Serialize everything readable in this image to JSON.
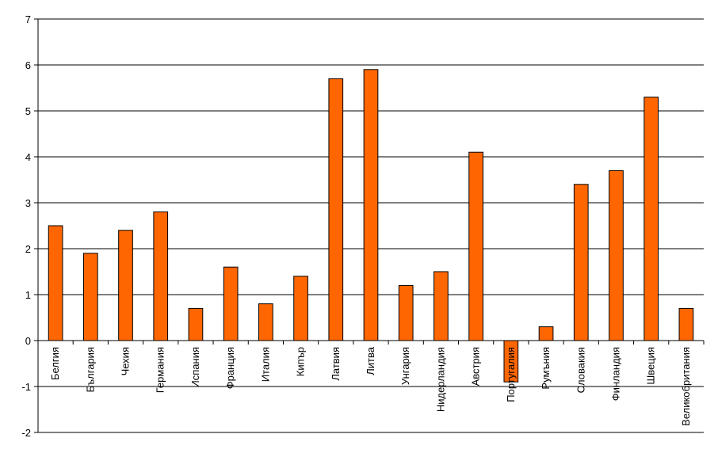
{
  "chart_data": {
    "type": "bar",
    "categories": [
      "Белгия",
      "България",
      "Чехия",
      "Германия",
      "Испания",
      "Франция",
      "Италия",
      "Кипър",
      "Латвия",
      "Литва",
      "Унгария",
      "Нидерландия",
      "Австрия",
      "Португалия",
      "Румъния",
      "Словакия",
      "Финландия",
      "Швеция",
      "Великобритания"
    ],
    "values": [
      2.5,
      1.9,
      2.4,
      2.8,
      0.7,
      1.6,
      0.8,
      1.4,
      5.7,
      5.9,
      1.2,
      1.5,
      4.1,
      -0.9,
      0.3,
      3.4,
      3.7,
      5.3,
      0.7
    ],
    "title": "",
    "xlabel": "",
    "ylabel": "",
    "ylim": [
      -2,
      7
    ],
    "yticks": [
      "-2",
      "-1",
      "0",
      "1",
      "2",
      "3",
      "4",
      "5",
      "6",
      "7"
    ],
    "grid": true,
    "bar_color": "#FF6600",
    "bar_stroke": "#000000"
  }
}
